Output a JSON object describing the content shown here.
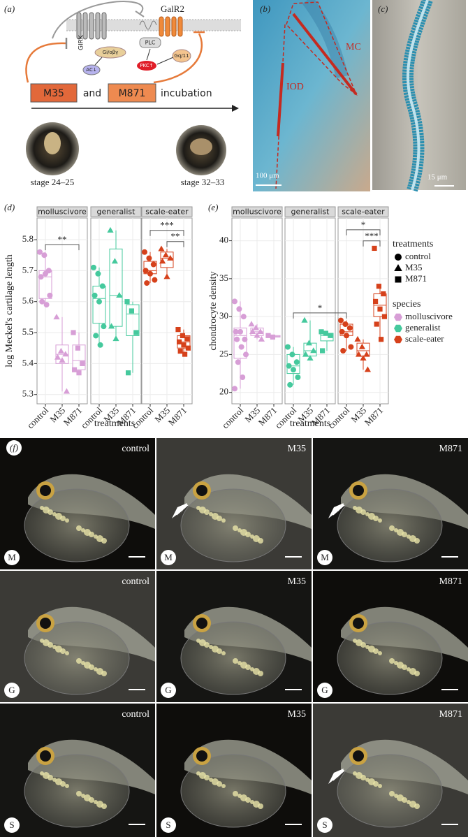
{
  "panel_a": {
    "label": "(a)",
    "receptor1": "GIRK",
    "receptor2": "GalR2",
    "plc": "PLC",
    "ac": "AC↓",
    "pkc": "PKC↑",
    "g1": "Gi/oβγ",
    "g2": "Gq/11",
    "drug1": "M35",
    "and": "and",
    "drug2": "M871",
    "incubation": "incubation",
    "stage1": "stage 24–25",
    "stage2": "stage 32–33"
  },
  "panel_b": {
    "label": "(b)",
    "iod": "IOD",
    "mc": "MC",
    "scale": "100 μm"
  },
  "panel_c": {
    "label": "(c)",
    "scale": "15 μm"
  },
  "chart_data": [
    {
      "type": "box",
      "label": "(d)",
      "ylabel": "log Meckel's cartilage length",
      "xlabel": "treatments",
      "facets": [
        "molluscivore",
        "generalist",
        "scale-eater"
      ],
      "categories": [
        "control",
        "M35",
        "M871"
      ],
      "colors": [
        "#d79ed6",
        "#45c99d",
        "#d6411b"
      ],
      "shapes": [
        "circle",
        "triangle",
        "square"
      ],
      "ylim": [
        5.27,
        5.87
      ],
      "yticks": [
        5.3,
        5.4,
        5.5,
        5.6,
        5.7,
        5.8
      ],
      "grid": true,
      "groups": [
        {
          "facet": 0,
          "treatment": 0,
          "values": [
            5.76,
            5.75,
            5.7,
            5.68,
            5.69,
            5.62,
            5.6,
            5.59
          ],
          "box": [
            5.59,
            5.61,
            5.68,
            5.7,
            5.76
          ]
        },
        {
          "facet": 0,
          "treatment": 1,
          "values": [
            5.55,
            5.44,
            5.43,
            5.42,
            5.41,
            5.31
          ],
          "box": [
            5.31,
            5.4,
            5.43,
            5.46,
            5.55
          ]
        },
        {
          "facet": 0,
          "treatment": 2,
          "values": [
            5.5,
            5.45,
            5.4,
            5.38,
            5.37
          ],
          "box": [
            5.37,
            5.38,
            5.41,
            5.46,
            5.5
          ]
        },
        {
          "facet": 1,
          "treatment": 0,
          "values": [
            5.71,
            5.69,
            5.65,
            5.62,
            5.6,
            5.52,
            5.49,
            5.46
          ],
          "box": [
            5.46,
            5.53,
            5.61,
            5.65,
            5.71
          ]
        },
        {
          "facet": 1,
          "treatment": 1,
          "values": [
            5.83,
            5.73,
            5.62,
            5.52,
            5.48
          ],
          "box": [
            5.48,
            5.52,
            5.62,
            5.77,
            5.83
          ]
        },
        {
          "facet": 1,
          "treatment": 2,
          "values": [
            5.6,
            5.57,
            5.5,
            5.37
          ],
          "box": [
            5.37,
            5.49,
            5.56,
            5.59,
            5.6
          ]
        },
        {
          "facet": 2,
          "treatment": 0,
          "values": [
            5.76,
            5.74,
            5.72,
            5.7,
            5.69,
            5.67,
            5.66
          ],
          "box": [
            5.66,
            5.69,
            5.7,
            5.73,
            5.76
          ]
        },
        {
          "facet": 2,
          "treatment": 1,
          "values": [
            5.77,
            5.75,
            5.74,
            5.73,
            5.68
          ],
          "box": [
            5.68,
            5.71,
            5.74,
            5.76,
            5.77
          ]
        },
        {
          "facet": 2,
          "treatment": 2,
          "values": [
            5.51,
            5.49,
            5.48,
            5.47,
            5.46,
            5.45,
            5.44,
            5.43
          ],
          "box": [
            5.43,
            5.45,
            5.47,
            5.49,
            5.51
          ]
        }
      ],
      "significance": [
        {
          "from": [
            0,
            0
          ],
          "to": [
            0,
            2
          ],
          "label": "**"
        },
        {
          "from": [
            2,
            1
          ],
          "to": [
            2,
            2
          ],
          "label": "**"
        },
        {
          "from": [
            2,
            0
          ],
          "to": [
            2,
            2
          ],
          "label": "***"
        }
      ]
    },
    {
      "type": "box",
      "label": "(e)",
      "ylabel": "chondrocyte density",
      "xlabel": "treatments",
      "facets": [
        "molluscivore",
        "generalist",
        "scale-eater"
      ],
      "categories": [
        "control",
        "M35",
        "M871"
      ],
      "colors": [
        "#d79ed6",
        "#45c99d",
        "#d6411b"
      ],
      "shapes": [
        "circle",
        "triangle",
        "square"
      ],
      "ylim": [
        18.5,
        43
      ],
      "yticks": [
        20,
        25,
        30,
        35,
        40
      ],
      "grid": true,
      "legend_treatments": "treatments",
      "legend_species": "species",
      "groups": [
        {
          "facet": 0,
          "treatment": 0,
          "values": [
            32,
            31,
            30,
            28,
            28,
            27,
            27,
            26,
            25,
            24,
            22,
            20.5
          ],
          "box": [
            20.5,
            24.5,
            27.5,
            28.5,
            32
          ]
        },
        {
          "facet": 0,
          "treatment": 1,
          "values": [
            29,
            28.5,
            28,
            28,
            27.5,
            27
          ],
          "box": [
            27,
            27.5,
            28,
            28.5,
            29
          ]
        },
        {
          "facet": 0,
          "treatment": 2,
          "values": [
            27.5,
            27.3
          ],
          "box": [
            27.3,
            27.3,
            27.4,
            27.5,
            27.5
          ]
        },
        {
          "facet": 1,
          "treatment": 0,
          "values": [
            26,
            25,
            24,
            23.5,
            23,
            22,
            21
          ],
          "box": [
            21,
            22.5,
            23.5,
            25,
            26
          ]
        },
        {
          "facet": 1,
          "treatment": 1,
          "values": [
            29.5,
            26.5,
            25.5,
            25,
            24.5
          ],
          "box": [
            24.5,
            24.8,
            25.5,
            26.5,
            29.5
          ]
        },
        {
          "facet": 1,
          "treatment": 2,
          "values": [
            28,
            27.8,
            27.5,
            25.5
          ],
          "box": [
            25.5,
            26.8,
            27.5,
            27.8,
            28
          ]
        },
        {
          "facet": 2,
          "treatment": 0,
          "values": [
            29.5,
            29,
            28.5,
            28,
            27.5,
            26,
            25.5
          ],
          "box": [
            25.5,
            27.5,
            28,
            29,
            29.5
          ]
        },
        {
          "facet": 2,
          "treatment": 1,
          "values": [
            27,
            26,
            25,
            25,
            24.5,
            23
          ],
          "box": [
            23,
            24.8,
            25.5,
            26.5,
            27
          ]
        },
        {
          "facet": 2,
          "treatment": 2,
          "values": [
            39,
            34,
            33,
            32,
            31,
            30,
            29,
            27
          ],
          "box": [
            27,
            30,
            31.5,
            33,
            34
          ]
        }
      ],
      "significance": [
        {
          "from": [
            1,
            0
          ],
          "to": [
            2,
            0
          ],
          "label": "*"
        },
        {
          "from": [
            2,
            1
          ],
          "to": [
            2,
            2
          ],
          "label": "***"
        },
        {
          "from": [
            2,
            0
          ],
          "to": [
            2,
            2
          ],
          "label": "*"
        }
      ]
    }
  ],
  "panel_f": {
    "label": "(f)",
    "columns": [
      "control",
      "M35",
      "M871"
    ],
    "rows": [
      "M",
      "G",
      "S"
    ]
  }
}
